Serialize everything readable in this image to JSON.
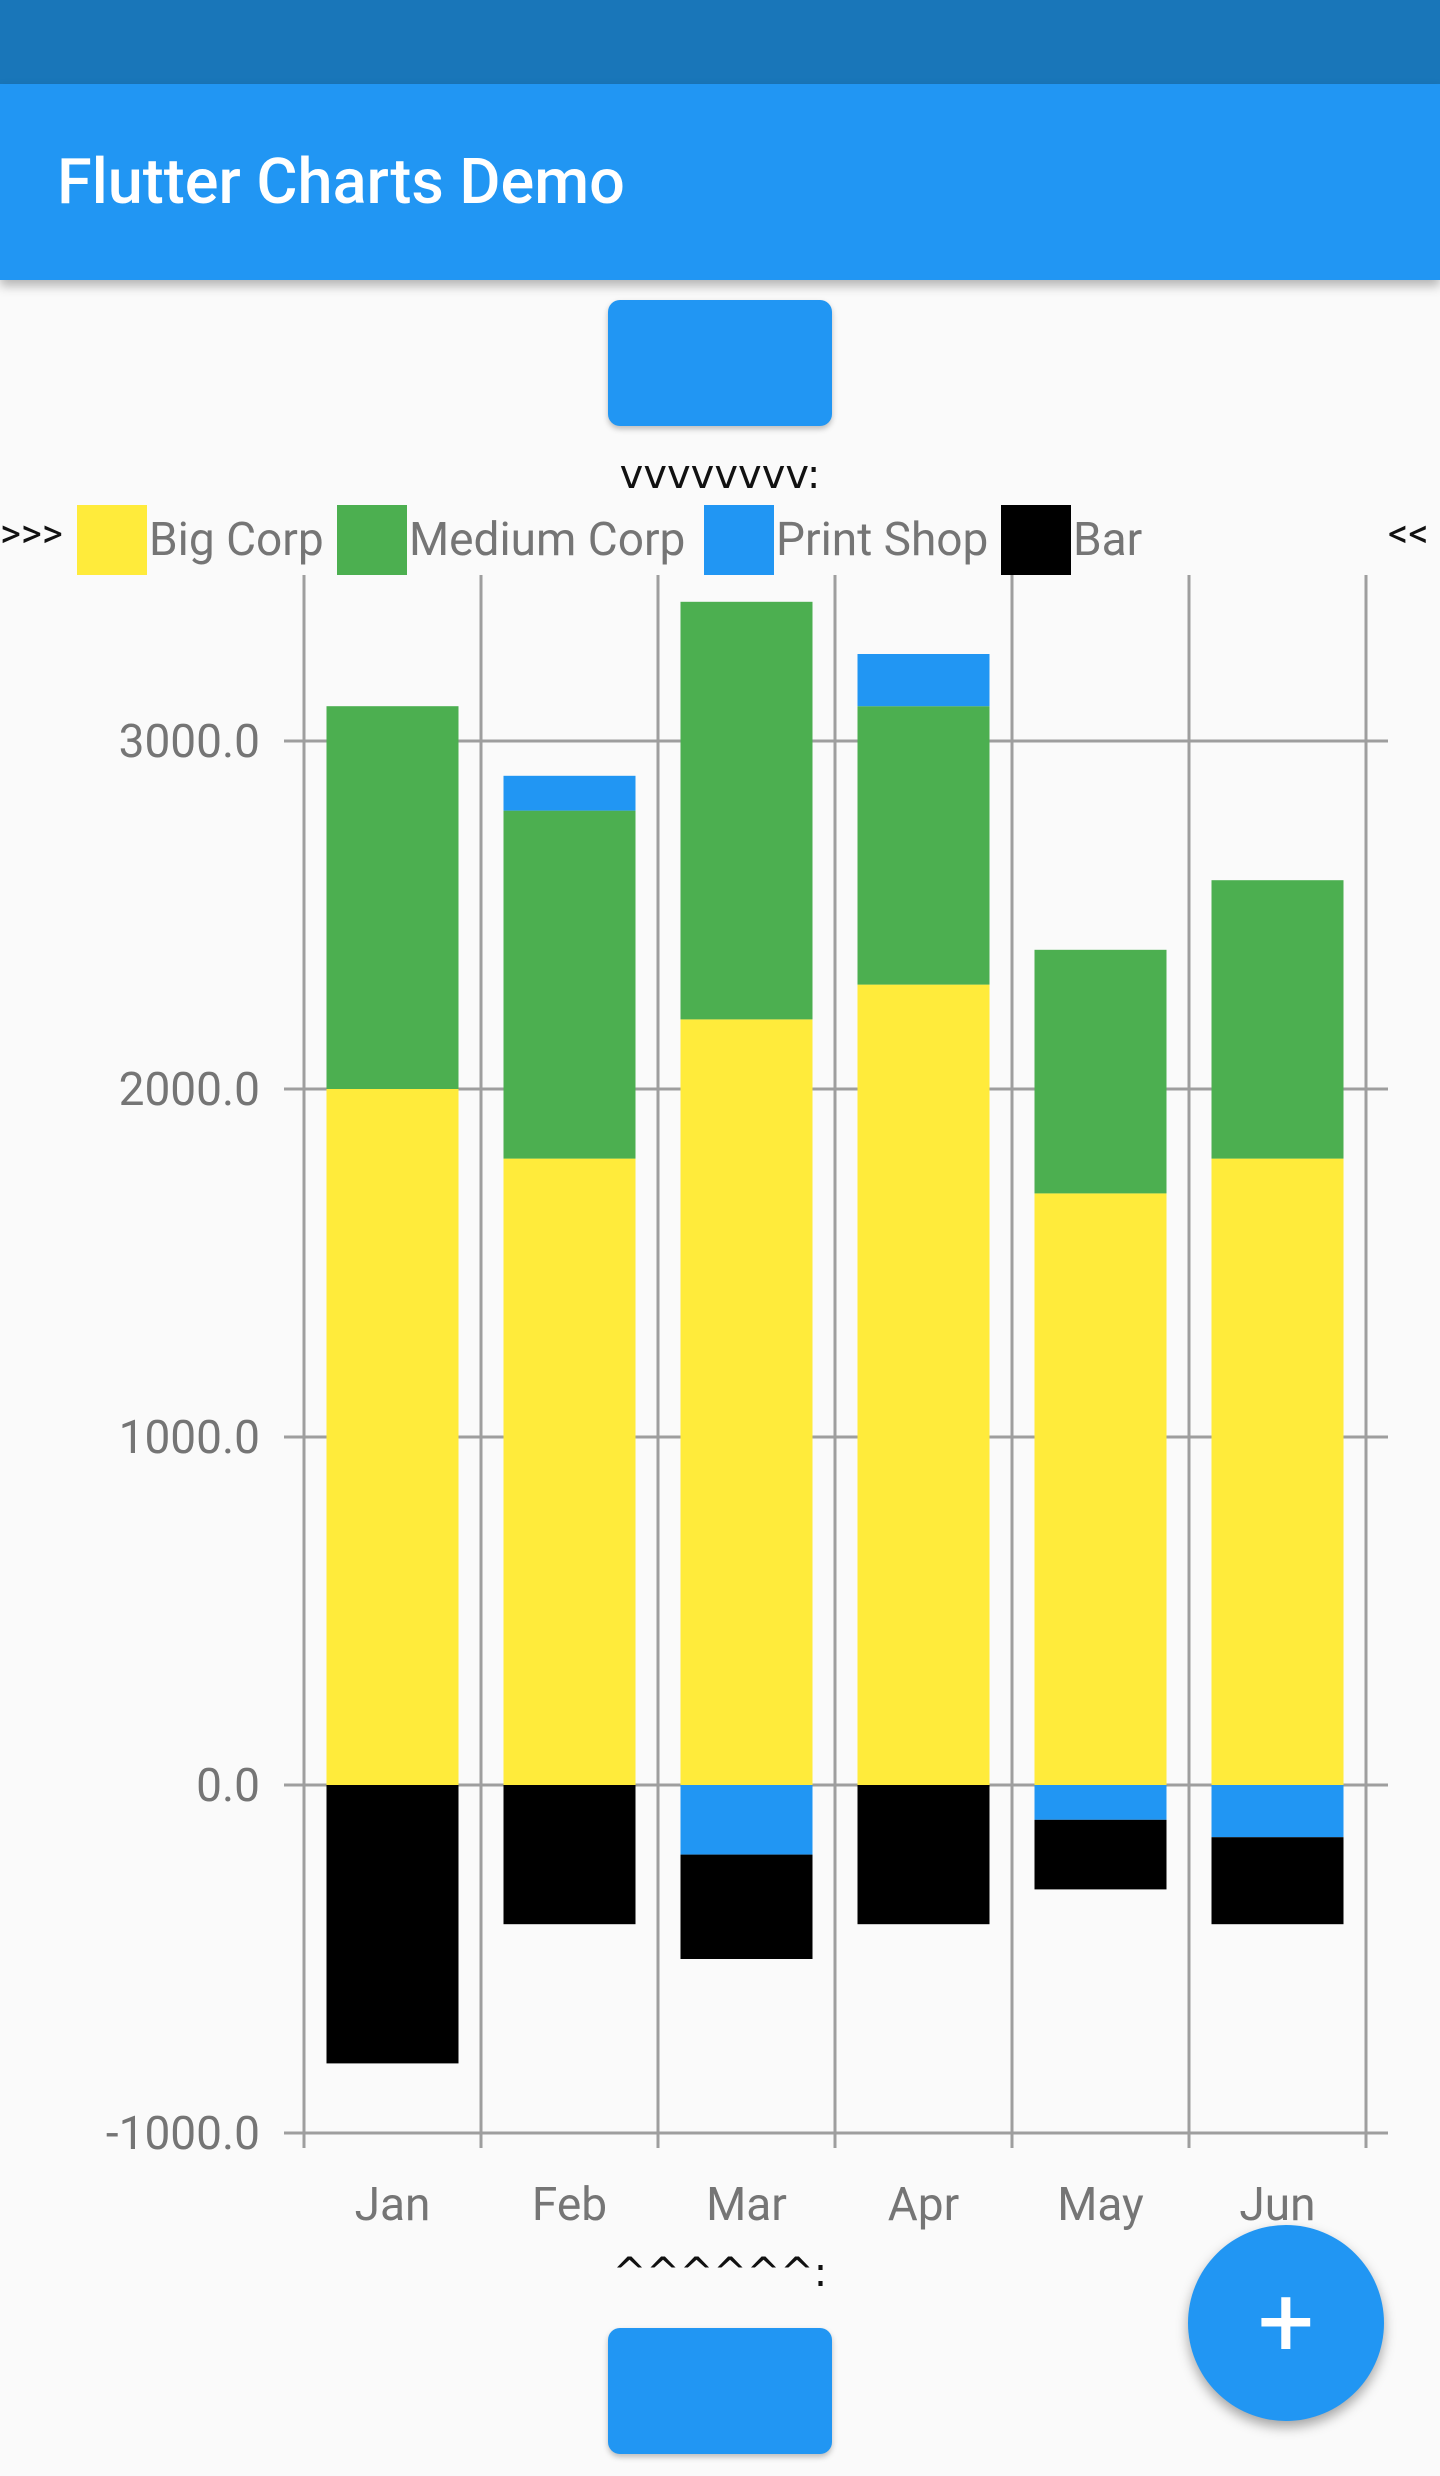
{
  "app": {
    "title": "Flutter Charts Demo"
  },
  "markers": {
    "top": "vvvvvvvv:",
    "bottom": "^^^^^^:",
    "left": ">>>",
    "right": "<<"
  },
  "legend": [
    {
      "name": "Big Corp",
      "color": "#ffeb3b"
    },
    {
      "name": "Medium Corp",
      "color": "#4caf50"
    },
    {
      "name": "Print Shop",
      "color": "#2196f3"
    },
    {
      "name": "Bar",
      "color": "#000000"
    }
  ],
  "fab": {
    "icon": "plus-icon",
    "label": "+"
  },
  "chart_data": {
    "type": "bar",
    "stacked": true,
    "categories": [
      "Jan",
      "Feb",
      "Mar",
      "Apr",
      "May",
      "Jun"
    ],
    "series": [
      {
        "name": "Big Corp",
        "color": "#ffeb3b",
        "values": [
          2000,
          1800,
          2200,
          2300,
          1700,
          1800
        ]
      },
      {
        "name": "Medium Corp",
        "color": "#4caf50",
        "values": [
          1100,
          1000,
          1200,
          800,
          700,
          800
        ]
      },
      {
        "name": "Print Shop",
        "color": "#2196f3",
        "values": [
          0,
          100,
          -200,
          150,
          -100,
          -150
        ]
      },
      {
        "name": "Bar",
        "color": "#000000",
        "values": [
          -800,
          -400,
          -300,
          -400,
          -200,
          -250
        ]
      }
    ],
    "y_ticks": [
      "3000.0",
      "2000.0",
      "1000.0",
      "0.0",
      "-1000.0"
    ],
    "y_tick_values": [
      3000,
      2000,
      1000,
      0,
      -1000
    ],
    "ylim": [
      -1000,
      3400
    ],
    "grid": true
  }
}
